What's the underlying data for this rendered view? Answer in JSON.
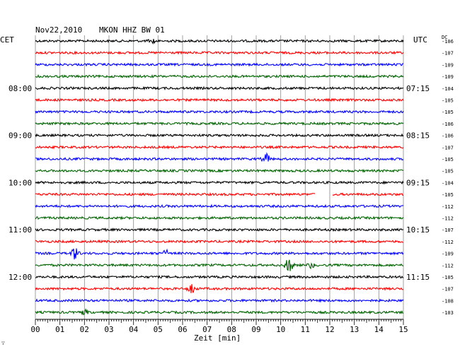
{
  "header": {
    "date": "Nov22,2010",
    "station": "MKON HHZ BW 01",
    "left_tz": "CET",
    "right_tz": "UTC",
    "dc_label": "DC"
  },
  "footer": {
    "xlabel": "Zeit [min]",
    "corner_mark": "∵"
  },
  "chart_data": {
    "type": "line",
    "title": "Nov22,2010  MKON HHZ BW 01",
    "xlabel": "Zeit [min]",
    "x_ticks": [
      "00",
      "01",
      "02",
      "03",
      "04",
      "05",
      "06",
      "07",
      "08",
      "09",
      "10",
      "11",
      "12",
      "13",
      "14",
      "15"
    ],
    "xlim": [
      0,
      15
    ],
    "trace_colors": [
      "#000000",
      "#ff0000",
      "#0000ff",
      "#006400"
    ],
    "left_time_labels": [
      {
        "row": 4,
        "label": "08:00"
      },
      {
        "row": 8,
        "label": "09:00"
      },
      {
        "row": 12,
        "label": "10:00"
      },
      {
        "row": 16,
        "label": "11:00"
      },
      {
        "row": 20,
        "label": "12:00"
      }
    ],
    "right_time_labels": [
      {
        "row": 4,
        "label": "07:15"
      },
      {
        "row": 8,
        "label": "08:15"
      },
      {
        "row": 12,
        "label": "09:15"
      },
      {
        "row": 16,
        "label": "10:15"
      },
      {
        "row": 20,
        "label": "11:15"
      }
    ],
    "dc_values": [
      "-106",
      "-107",
      "-109",
      "-109",
      "-104",
      "-105",
      "-105",
      "-106",
      "-106",
      "-107",
      "-105",
      "-105",
      "-104",
      "-105",
      "-112",
      "-112",
      "-107",
      "-112",
      "-109",
      "-112",
      "-105",
      "-107",
      "-108",
      "-103"
    ],
    "events": [
      {
        "row": 0,
        "minute": 4.8,
        "amp": 0.25
      },
      {
        "row": 10,
        "minute": 9.4,
        "amp": 0.55
      },
      {
        "row": 13,
        "minute": 11.4,
        "amp": 0,
        "gap_to": 12.1
      },
      {
        "row": 18,
        "minute": 1.6,
        "amp": 0.55
      },
      {
        "row": 18,
        "minute": 5.3,
        "amp": 0.35
      },
      {
        "row": 19,
        "minute": 10.35,
        "amp": 0.7
      },
      {
        "row": 19,
        "minute": 11.2,
        "amp": 0.3
      },
      {
        "row": 21,
        "minute": 6.35,
        "amp": 0.55
      },
      {
        "row": 23,
        "minute": 2.0,
        "amp": 0.25
      }
    ]
  }
}
